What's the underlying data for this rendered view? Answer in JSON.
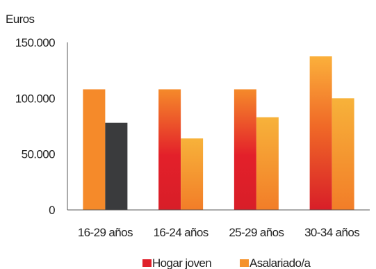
{
  "chart_data": {
    "type": "bar",
    "ylabel": "Euros",
    "categories": [
      "16-29 años",
      "16-24 años",
      "25-29 años",
      "30-34 años"
    ],
    "y_ticks": [
      "0",
      "50.000",
      "100.000",
      "150.000"
    ],
    "ylim": [
      0,
      150000
    ],
    "grid": false,
    "legend_position": "bottom",
    "series": [
      {
        "name": "Hogar joven",
        "values": [
          108000,
          108000,
          108000,
          137500
        ],
        "color": "#e0202a"
      },
      {
        "name": "Asalariado/a",
        "values": [
          78000,
          64000,
          83000,
          100000
        ],
        "color": "#f5922b"
      }
    ],
    "highlight": {
      "category_index": 0,
      "bar_colors": [
        "#f58a2a",
        "#3a3b3d"
      ],
      "note": "first group drawn in solid orange and dark gray"
    }
  }
}
